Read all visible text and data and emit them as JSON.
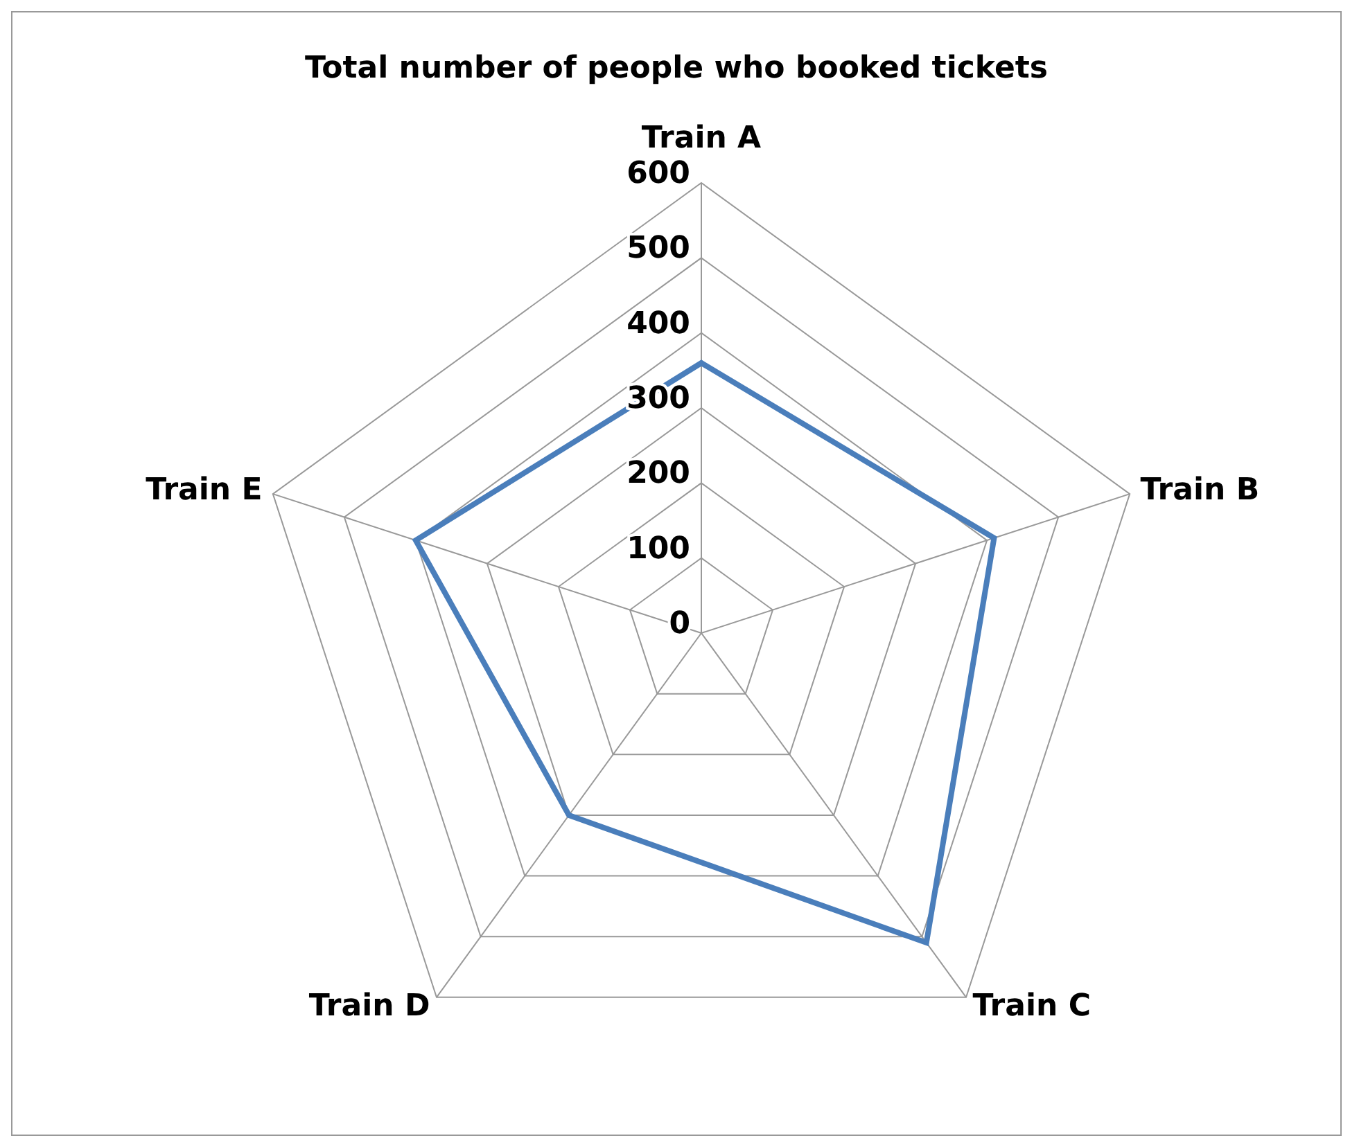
{
  "chart_data": {
    "type": "radar",
    "title": "Total number of people who booked tickets",
    "categories": [
      "Train A",
      "Train B",
      "Train C",
      "Train D",
      "Train E"
    ],
    "series": [
      {
        "color": "#4a7ebb",
        "values": [
          360,
          410,
          510,
          300,
          400
        ]
      }
    ],
    "ylim": [
      0,
      600
    ],
    "yticks": [
      0,
      100,
      200,
      300,
      400,
      500,
      600
    ],
    "grid": true,
    "marker": "none"
  }
}
